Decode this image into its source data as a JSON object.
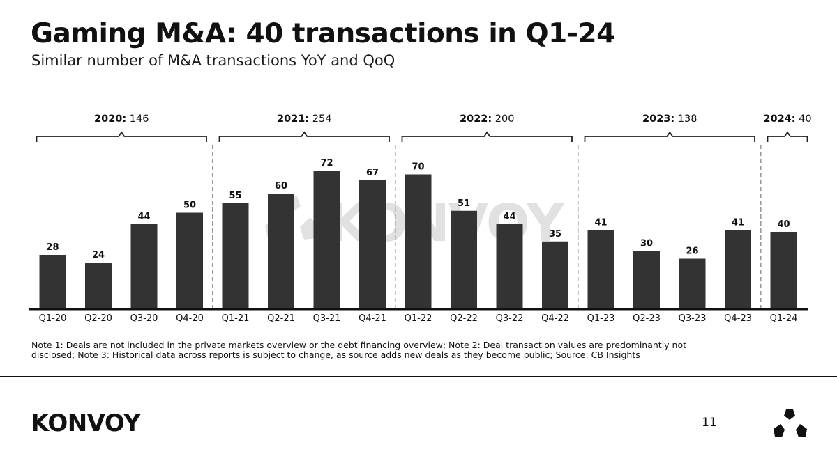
{
  "header": {
    "title": "Gaming M&A: 40 transactions in Q1-24",
    "subtitle": "Similar number of M&A transactions YoY and QoQ"
  },
  "chart_data": {
    "type": "bar",
    "title": "Gaming M&A: 40 transactions in Q1-24",
    "subtitle": "Similar number of M&A transactions YoY and QoQ",
    "xlabel": "",
    "ylabel": "",
    "grid": false,
    "ylim": [
      0,
      72
    ],
    "categories": [
      "Q1-20",
      "Q2-20",
      "Q3-20",
      "Q4-20",
      "Q1-21",
      "Q2-21",
      "Q3-21",
      "Q4-21",
      "Q1-22",
      "Q2-22",
      "Q3-22",
      "Q4-22",
      "Q1-23",
      "Q2-23",
      "Q3-23",
      "Q4-23",
      "Q1-24"
    ],
    "values": [
      28,
      24,
      44,
      50,
      55,
      60,
      72,
      67,
      70,
      51,
      44,
      35,
      41,
      30,
      26,
      41,
      40
    ],
    "year_groups": [
      {
        "year": "2020:",
        "total": "146",
        "start": 0,
        "end": 3
      },
      {
        "year": "2021:",
        "total": "254",
        "start": 4,
        "end": 7
      },
      {
        "year": "2022:",
        "total": "200",
        "start": 8,
        "end": 11
      },
      {
        "year": "2023:",
        "total": "138",
        "start": 12,
        "end": 15
      },
      {
        "year": "2024:",
        "total": "40",
        "start": 16,
        "end": 16
      }
    ],
    "bar_color": "#333333",
    "watermark": "KONVOY"
  },
  "notes": "Note 1: Deals are not included in the private markets overview or the debt financing overview; Note 2: Deal transaction values are predominantly not disclosed; Note 3: Historical data across reports is subject to change, as source adds new deals as they become public; Source: CB Insights",
  "footer": {
    "logo_text": "KONVOY",
    "page_number": "11"
  },
  "icons": {
    "logo_mark": "konvoy-tri-logo-icon"
  }
}
